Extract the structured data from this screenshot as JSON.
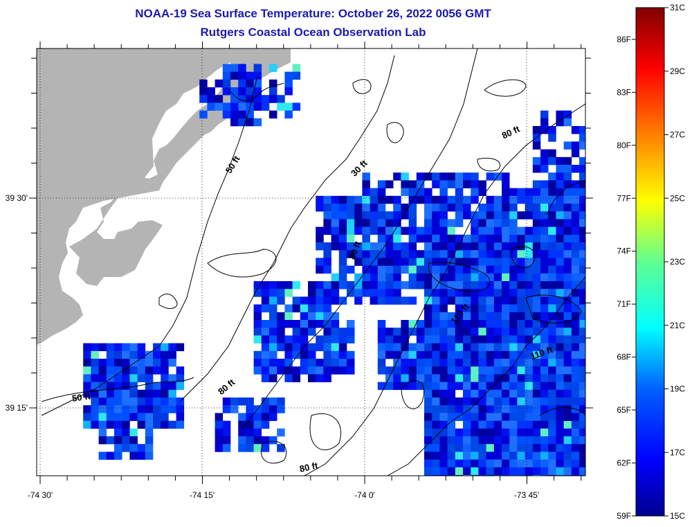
{
  "title": "NOAA-19 Sea Surface Temperature:  October 26, 2022 0056 GMT",
  "subtitle": "Rutgers Coastal Ocean Observation Lab",
  "axes": {
    "lon_labels": [
      "-74 30'",
      "-74 15'",
      "-74 0'",
      "-73 45'"
    ],
    "lat_labels": [
      "39 30'",
      "39 15'"
    ]
  },
  "depth_contour_labels": [
    "50 ft",
    "30 ft",
    "80 ft",
    "80 ft",
    "110 ft",
    "110 ft",
    "50 ft",
    "80 ft",
    "80 ft"
  ],
  "colorbar": {
    "fahrenheit_labels": [
      "86F",
      "83F",
      "80F",
      "77F",
      "74F",
      "71F",
      "68F",
      "65F",
      "62F",
      "59F"
    ],
    "celsius_labels": [
      "31C",
      "29C",
      "27C",
      "25C",
      "23C",
      "21C",
      "19C",
      "17C",
      "15C"
    ],
    "range_c": [
      15,
      31
    ]
  },
  "colors": {
    "title": "#1a1ab0",
    "land": "#b4b4b4",
    "ocean_nodata": "#ffffff",
    "contour": "#000000",
    "sst_low": "#00008f",
    "sst_high": "#800000"
  }
}
